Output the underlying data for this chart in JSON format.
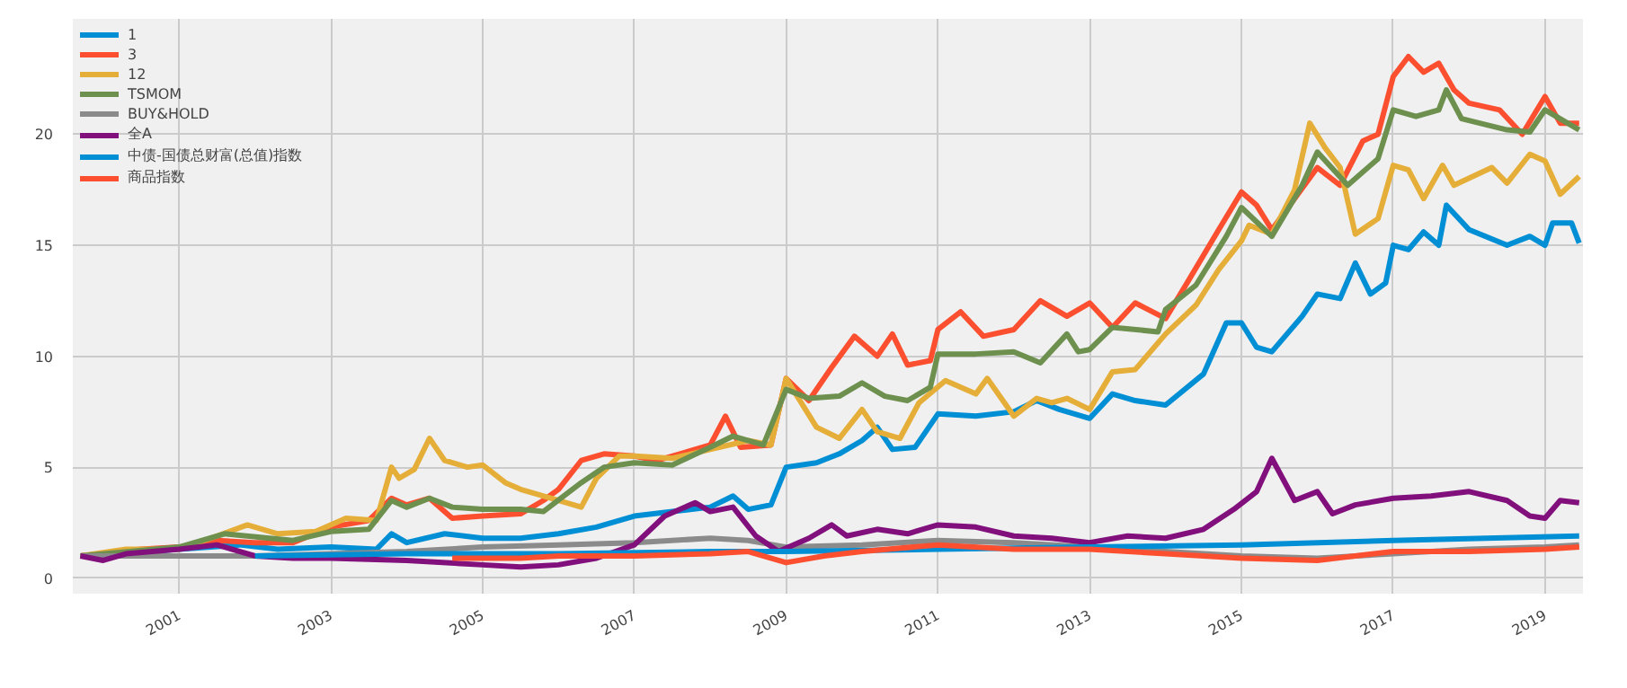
{
  "chart_data": {
    "type": "line",
    "xlim": [
      1999.6,
      2019.5
    ],
    "ylim": [
      -0.7,
      25.2
    ],
    "xticks": [
      2001,
      2003,
      2005,
      2007,
      2009,
      2011,
      2013,
      2015,
      2017,
      2019
    ],
    "yticks": [
      0,
      5,
      10,
      15,
      20
    ],
    "grid": true,
    "legend": "top left",
    "line_style": "solid",
    "marker": "none",
    "series": [
      {
        "name": "1",
        "color": "#008fd5",
        "x": [
          1999.7,
          2001,
          2001.8,
          2002.3,
          2003,
          2003.6,
          2003.8,
          2004,
          2004.5,
          2005,
          2005.5,
          2006,
          2006.5,
          2007,
          2007.5,
          2008,
          2008.3,
          2008.5,
          2008.8,
          2009,
          2009.4,
          2009.7,
          2010,
          2010.2,
          2010.4,
          2010.7,
          2011,
          2011.5,
          2012,
          2012.3,
          2012.6,
          2013,
          2013.3,
          2013.6,
          2014,
          2014.5,
          2014.8,
          2015,
          2015.2,
          2015.4,
          2015.8,
          2016,
          2016.3,
          2016.5,
          2016.7,
          2016.9,
          2017,
          2017.2,
          2017.4,
          2017.6,
          2017.7,
          2018,
          2018.5,
          2018.8,
          2019,
          2019.1,
          2019.35,
          2019.45
        ],
        "values": [
          1.0,
          1.3,
          1.5,
          1.3,
          1.4,
          1.3,
          2.0,
          1.6,
          2.0,
          1.8,
          1.8,
          2.0,
          2.3,
          2.8,
          3.0,
          3.2,
          3.7,
          3.1,
          3.3,
          5.0,
          5.2,
          5.6,
          6.2,
          6.8,
          5.8,
          5.9,
          7.4,
          7.3,
          7.5,
          8.0,
          7.6,
          7.2,
          8.3,
          8.0,
          7.8,
          9.2,
          11.5,
          11.5,
          10.4,
          10.2,
          11.8,
          12.8,
          12.6,
          14.2,
          12.8,
          13.3,
          15.0,
          14.8,
          15.6,
          15.0,
          16.8,
          15.7,
          15.0,
          15.4,
          15.0,
          16.0,
          16.0,
          15.1
        ]
      },
      {
        "name": "3",
        "color": "#fc4f30",
        "x": [
          1999.7,
          2000.5,
          2001,
          2001.5,
          2002,
          2002.5,
          2003,
          2003.5,
          2003.8,
          2004,
          2004.3,
          2004.6,
          2005,
          2005.5,
          2005.8,
          2006,
          2006.3,
          2006.6,
          2007,
          2007.3,
          2007.6,
          2008,
          2008.2,
          2008.4,
          2008.8,
          2009,
          2009.3,
          2009.6,
          2009.9,
          2010.2,
          2010.4,
          2010.6,
          2010.9,
          2011,
          2011.3,
          2011.6,
          2012,
          2012.35,
          2012.7,
          2013,
          2013.3,
          2013.6,
          2014,
          2014.3,
          2014.7,
          2015,
          2015.2,
          2015.4,
          2015.7,
          2016,
          2016.3,
          2016.6,
          2016.8,
          2017,
          2017.2,
          2017.4,
          2017.6,
          2017.8,
          2018,
          2018.4,
          2018.7,
          2019,
          2019.2,
          2019.45
        ],
        "values": [
          1.0,
          1.3,
          1.4,
          1.7,
          1.6,
          1.6,
          2.3,
          2.6,
          3.6,
          3.3,
          3.6,
          2.7,
          2.8,
          2.9,
          3.5,
          4.0,
          5.3,
          5.6,
          5.5,
          5.3,
          5.6,
          6.0,
          7.3,
          5.9,
          6.0,
          9.0,
          8.0,
          9.5,
          10.9,
          10.0,
          11.0,
          9.6,
          9.8,
          11.2,
          12.0,
          10.9,
          11.2,
          12.5,
          11.8,
          12.4,
          11.3,
          12.4,
          11.7,
          13.4,
          15.7,
          17.4,
          16.8,
          15.7,
          17.1,
          18.5,
          17.7,
          19.7,
          20.0,
          22.6,
          23.5,
          22.8,
          23.2,
          22.0,
          21.4,
          21.1,
          20.0,
          21.7,
          20.5,
          20.5
        ]
      },
      {
        "name": "12",
        "color": "#e5ae38",
        "x": [
          1999.7,
          2000.3,
          2001,
          2001.5,
          2001.9,
          2002.3,
          2002.8,
          2003.2,
          2003.6,
          2003.8,
          2003.9,
          2004.1,
          2004.3,
          2004.5,
          2004.8,
          2005,
          2005.3,
          2005.5,
          2006,
          2006.3,
          2006.5,
          2006.8,
          2007,
          2007.5,
          2008,
          2008.5,
          2008.8,
          2009,
          2009.4,
          2009.7,
          2010,
          2010.2,
          2010.5,
          2010.75,
          2011.1,
          2011.5,
          2011.65,
          2012,
          2012.3,
          2012.5,
          2012.7,
          2013,
          2013.3,
          2013.6,
          2014,
          2014.4,
          2014.7,
          2015,
          2015.1,
          2015.4,
          2015.7,
          2015.9,
          2016.1,
          2016.3,
          2016.5,
          2016.8,
          2017,
          2017.2,
          2017.4,
          2017.65,
          2017.8,
          2018.3,
          2018.5,
          2018.8,
          2019,
          2019.2,
          2019.45
        ],
        "values": [
          1.0,
          1.3,
          1.3,
          1.9,
          2.4,
          2.0,
          2.1,
          2.7,
          2.6,
          5.0,
          4.5,
          4.9,
          6.3,
          5.3,
          5.0,
          5.1,
          4.3,
          4.0,
          3.5,
          3.2,
          4.5,
          5.5,
          5.5,
          5.4,
          5.8,
          6.2,
          6.0,
          9.0,
          6.8,
          6.3,
          7.6,
          6.6,
          6.3,
          7.9,
          8.9,
          8.3,
          9.0,
          7.3,
          8.1,
          7.9,
          8.1,
          7.6,
          9.3,
          9.4,
          11.0,
          12.3,
          13.9,
          15.2,
          15.9,
          15.5,
          17.5,
          20.5,
          19.4,
          18.5,
          15.5,
          16.2,
          18.6,
          18.4,
          17.1,
          18.6,
          17.7,
          18.5,
          17.8,
          19.1,
          18.8,
          17.3,
          18.1
        ]
      },
      {
        "name": "TSMOM",
        "color": "#6d904f",
        "x": [
          1999.7,
          2001,
          2001.6,
          2002.5,
          2003,
          2003.5,
          2003.8,
          2004,
          2004.3,
          2004.6,
          2005,
          2005.5,
          2005.8,
          2006.3,
          2006.6,
          2007,
          2007.5,
          2008,
          2008.3,
          2008.7,
          2009,
          2009.3,
          2009.7,
          2010,
          2010.3,
          2010.6,
          2010.9,
          2011,
          2011.5,
          2012,
          2012.35,
          2012.7,
          2012.85,
          2013,
          2013.3,
          2013.9,
          2014,
          2014.4,
          2014.8,
          2015,
          2015.4,
          2015.8,
          2016,
          2016.4,
          2016.8,
          2017,
          2017.3,
          2017.6,
          2017.7,
          2017.9,
          2018.5,
          2018.8,
          2019,
          2019.45
        ],
        "values": [
          1.0,
          1.4,
          2.0,
          1.7,
          2.1,
          2.2,
          3.5,
          3.2,
          3.6,
          3.2,
          3.1,
          3.1,
          3.0,
          4.3,
          5.0,
          5.2,
          5.1,
          5.9,
          6.4,
          6.0,
          8.5,
          8.1,
          8.2,
          8.8,
          8.2,
          8.0,
          8.6,
          10.1,
          10.1,
          10.2,
          9.7,
          11.0,
          10.2,
          10.3,
          11.3,
          11.1,
          12.1,
          13.2,
          15.4,
          16.7,
          15.4,
          17.7,
          19.2,
          17.7,
          18.9,
          21.1,
          20.8,
          21.1,
          22.0,
          20.7,
          20.2,
          20.1,
          21.1,
          20.2
        ]
      },
      {
        "name": "BUY&HOLD",
        "color": "#8b8b8b",
        "x": [
          1999.7,
          2001,
          2002,
          2003,
          2004,
          2005,
          2006,
          2007,
          2008,
          2008.5,
          2009,
          2010,
          2011,
          2012,
          2013,
          2014,
          2015,
          2016,
          2017,
          2018,
          2019,
          2019.45
        ],
        "values": [
          1.0,
          1.0,
          1.0,
          1.1,
          1.2,
          1.4,
          1.5,
          1.6,
          1.8,
          1.7,
          1.4,
          1.5,
          1.7,
          1.6,
          1.4,
          1.2,
          1.0,
          0.9,
          1.1,
          1.3,
          1.4,
          1.5
        ]
      },
      {
        "name": "全A",
        "color": "#810f7c",
        "x": [
          1999.7,
          2000,
          2000.3,
          2001,
          2001.5,
          2002,
          2002.5,
          2003,
          2004,
          2005,
          2005.5,
          2006,
          2006.5,
          2007,
          2007.4,
          2007.8,
          2008,
          2008.3,
          2008.6,
          2008.9,
          2009.3,
          2009.6,
          2009.8,
          2010.2,
          2010.6,
          2011,
          2011.5,
          2012,
          2012.5,
          2013,
          2013.5,
          2014,
          2014.5,
          2014.9,
          2015.2,
          2015.4,
          2015.7,
          2016,
          2016.2,
          2016.5,
          2017,
          2017.5,
          2018,
          2018.5,
          2018.8,
          2019,
          2019.2,
          2019.45
        ],
        "values": [
          1.0,
          0.8,
          1.1,
          1.3,
          1.5,
          1.0,
          0.9,
          0.9,
          0.8,
          0.6,
          0.5,
          0.6,
          0.9,
          1.5,
          2.8,
          3.4,
          3.0,
          3.2,
          1.9,
          1.2,
          1.8,
          2.4,
          1.9,
          2.2,
          2.0,
          2.4,
          2.3,
          1.9,
          1.8,
          1.6,
          1.9,
          1.8,
          2.2,
          3.1,
          3.9,
          5.4,
          3.5,
          3.9,
          2.9,
          3.3,
          3.6,
          3.7,
          3.9,
          3.5,
          2.8,
          2.7,
          3.5,
          3.4
        ]
      },
      {
        "name": "中债-国债总财富(总值)指数",
        "color": "#008fd5",
        "x": [
          2002,
          2004,
          2006,
          2008,
          2009,
          2011,
          2013,
          2015,
          2017,
          2019.45
        ],
        "values": [
          1.0,
          1.1,
          1.1,
          1.2,
          1.2,
          1.3,
          1.4,
          1.5,
          1.7,
          1.9
        ]
      },
      {
        "name": "商品指数",
        "color": "#fc4f30",
        "x": [
          2004.6,
          2005.5,
          2006,
          2007,
          2008,
          2008.5,
          2009,
          2009.5,
          2010,
          2011,
          2012,
          2013,
          2014,
          2015,
          2016,
          2017,
          2018,
          2019,
          2019.45
        ],
        "values": [
          0.9,
          0.9,
          1.0,
          1.0,
          1.1,
          1.2,
          0.7,
          1.0,
          1.2,
          1.5,
          1.3,
          1.3,
          1.1,
          0.9,
          0.8,
          1.2,
          1.2,
          1.3,
          1.4
        ]
      }
    ]
  }
}
